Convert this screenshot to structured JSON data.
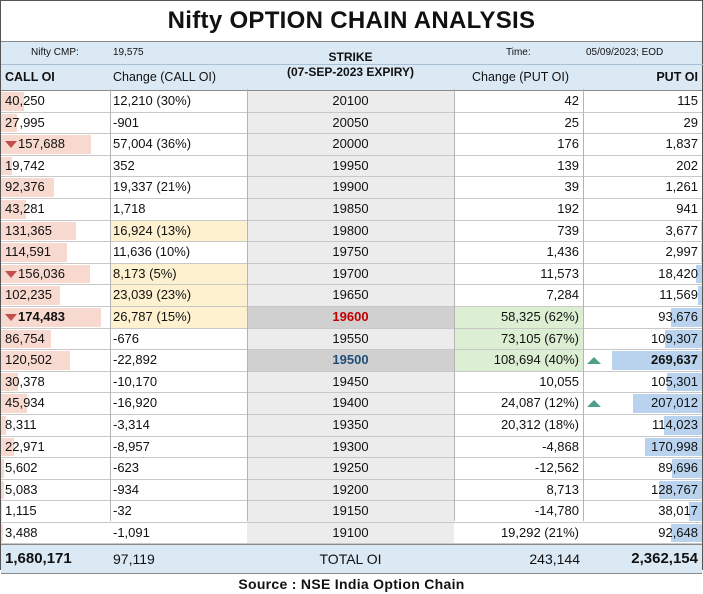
{
  "title": "Nifty OPTION CHAIN ANALYSIS",
  "header": {
    "cmp_label": "Nifty CMP:",
    "cmp_value": "19,575",
    "time_label": "Time:",
    "time_value": "05/09/2023; EOD",
    "call_oi": "CALL OI",
    "change_call_oi": "Change (CALL OI)",
    "strike_line1": "STRIKE",
    "strike_line2": "(07-SEP-2023 EXPIRY)",
    "change_put_oi": "Change (PUT OI)",
    "put_oi": "PUT OI"
  },
  "colors": {
    "header_bg": "#dbe9f5",
    "call_bar": "#f7d9cf",
    "put_bar": "#b9d3ee",
    "call_change_highlight": "#fdf1cf",
    "put_change_highlight": "#dcefd3",
    "strike_max_call": "#c00000",
    "strike_atm": "#1f4e79",
    "down_arrow": "#c0504d",
    "up_arrow": "#4fa08a"
  },
  "rows": [
    {
      "call_oi": "40,250",
      "call_chg": "12,210 (30%)",
      "strike": "20100",
      "put_chg": "42",
      "put_oi": "115",
      "call_frac": 0.23,
      "put_frac": 0.0
    },
    {
      "call_oi": "27,995",
      "call_chg": "-901",
      "strike": "20050",
      "put_chg": "25",
      "put_oi": "29",
      "call_frac": 0.16,
      "put_frac": 0.0
    },
    {
      "call_oi": "157,688",
      "call_chg": "57,004 (36%)",
      "strike": "20000",
      "put_chg": "176",
      "put_oi": "1,837",
      "call_frac": 0.9,
      "put_frac": 0.0,
      "call_down": true
    },
    {
      "call_oi": "19,742",
      "call_chg": "352",
      "strike": "19950",
      "put_chg": "139",
      "put_oi": "202",
      "call_frac": 0.11,
      "put_frac": 0.0
    },
    {
      "call_oi": "92,376",
      "call_chg": "19,337 (21%)",
      "strike": "19900",
      "put_chg": "39",
      "put_oi": "1,261",
      "call_frac": 0.53,
      "put_frac": 0.0
    },
    {
      "call_oi": "43,281",
      "call_chg": "1,718",
      "strike": "19850",
      "put_chg": "192",
      "put_oi": "941",
      "call_frac": 0.25,
      "put_frac": 0.0
    },
    {
      "call_oi": "131,365",
      "call_chg": "16,924 (13%)",
      "strike": "19800",
      "put_chg": "739",
      "put_oi": "3,677",
      "call_frac": 0.75,
      "put_frac": 0.01,
      "call_chg_hl": true
    },
    {
      "call_oi": "114,591",
      "call_chg": "11,636 (10%)",
      "strike": "19750",
      "put_chg": "1,436",
      "put_oi": "2,997",
      "call_frac": 0.66,
      "put_frac": 0.01
    },
    {
      "call_oi": "156,036",
      "call_chg": "8,173 (5%)",
      "strike": "19700",
      "put_chg": "11,573",
      "put_oi": "18,420",
      "call_frac": 0.89,
      "put_frac": 0.07,
      "call_down": true,
      "call_chg_hl": true
    },
    {
      "call_oi": "102,235",
      "call_chg": "23,039 (23%)",
      "strike": "19650",
      "put_chg": "7,284",
      "put_oi": "11,569",
      "call_frac": 0.59,
      "put_frac": 0.04,
      "call_chg_hl": true
    },
    {
      "call_oi": "174,483",
      "call_chg": "26,787 (15%)",
      "strike": "19600",
      "put_chg": "58,325 (62%)",
      "put_oi": "93,676",
      "call_frac": 1.0,
      "put_frac": 0.35,
      "call_down": true,
      "call_chg_hl": true,
      "put_chg_hl": true,
      "strike_hl": true,
      "strike_color": "#c00000",
      "bold_call": true
    },
    {
      "call_oi": "86,754",
      "call_chg": "-676",
      "strike": "19550",
      "put_chg": "73,105 (67%)",
      "put_oi": "109,307",
      "call_frac": 0.5,
      "put_frac": 0.41,
      "put_chg_hl": true
    },
    {
      "call_oi": "120,502",
      "call_chg": "-22,892",
      "strike": "19500",
      "put_chg": "108,694 (40%)",
      "put_oi": "269,637",
      "call_frac": 0.69,
      "put_frac": 1.0,
      "put_up": true,
      "put_chg_hl": true,
      "strike_hl": true,
      "strike_color": "#1f4e79",
      "bold_put": true
    },
    {
      "call_oi": "30,378",
      "call_chg": "-10,170",
      "strike": "19450",
      "put_chg": "10,055",
      "put_oi": "105,301",
      "call_frac": 0.17,
      "put_frac": 0.39
    },
    {
      "call_oi": "45,934",
      "call_chg": "-16,920",
      "strike": "19400",
      "put_chg": "24,087 (12%)",
      "put_oi": "207,012",
      "call_frac": 0.26,
      "put_frac": 0.77,
      "put_up": true
    },
    {
      "call_oi": "8,311",
      "call_chg": "-3,314",
      "strike": "19350",
      "put_chg": "20,312 (18%)",
      "put_oi": "114,023",
      "call_frac": 0.05,
      "put_frac": 0.42
    },
    {
      "call_oi": "22,971",
      "call_chg": "-8,957",
      "strike": "19300",
      "put_chg": "-4,868",
      "put_oi": "170,998",
      "call_frac": 0.13,
      "put_frac": 0.63
    },
    {
      "call_oi": "5,602",
      "call_chg": "-623",
      "strike": "19250",
      "put_chg": "-12,562",
      "put_oi": "89,696",
      "call_frac": 0.03,
      "put_frac": 0.33
    },
    {
      "call_oi": "5,083",
      "call_chg": "-934",
      "strike": "19200",
      "put_chg": "8,713",
      "put_oi": "128,767",
      "call_frac": 0.03,
      "put_frac": 0.48
    },
    {
      "call_oi": "1,115",
      "call_chg": "-32",
      "strike": "19150",
      "put_chg": "-14,780",
      "put_oi": "38,017",
      "call_frac": 0.01,
      "put_frac": 0.14
    },
    {
      "call_oi": "3,488",
      "call_chg": "-1,091",
      "strike": "19100",
      "put_chg": "19,292 (21%)",
      "put_oi": "92,648",
      "call_frac": 0.02,
      "put_frac": 0.34
    }
  ],
  "totals": {
    "call_oi": "1,680,171",
    "call_chg": "97,119",
    "label": "TOTAL OI",
    "put_chg": "243,144",
    "put_oi": "2,362,154"
  },
  "source": "Source : NSE India Option Chain"
}
